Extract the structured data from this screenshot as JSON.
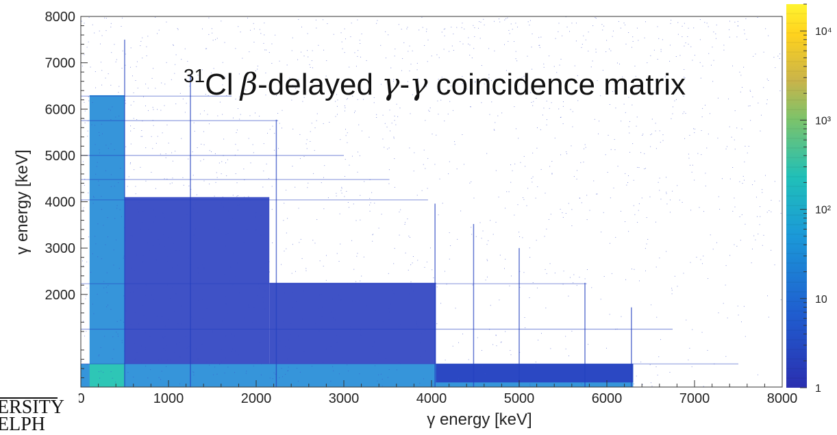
{
  "chart_data": {
    "type": "heatmap",
    "title": {
      "mass_number": "31",
      "element": "Cl",
      "beta": "β",
      "mid": "-delayed ",
      "gamma1": "γ",
      "dash": "-",
      "gamma2": "γ",
      "rest": " coincidence matrix"
    },
    "xlabel": "γ energy [keV]",
    "ylabel": "γ energy [keV]",
    "xlim": [
      0,
      8000
    ],
    "ylim": [
      0,
      8000
    ],
    "x_ticks": [
      "0",
      "1000",
      "2000",
      "3000",
      "4000",
      "5000",
      "6000",
      "7000",
      "8000"
    ],
    "y_ticks": [
      "2000",
      "3000",
      "4000",
      "5000",
      "6000",
      "7000",
      "8000"
    ],
    "colorbar": {
      "scale": "log",
      "range": [
        1,
        20000
      ],
      "tick_labels": [
        "1",
        "10",
        "10²",
        "10³",
        "10⁴"
      ]
    },
    "colors": {
      "low": "#2a3fc0",
      "mid": "#2b8fd8",
      "high": "#2fd0b0",
      "peak": "#ffe600"
    },
    "gamma_lines_keV": [
      500,
      1250,
      2230,
      4040,
      4480,
      5000,
      5750,
      6280
    ],
    "dense_regions_keV": [
      {
        "x": [
          100,
          500
        ],
        "y": [
          0,
          6300
        ],
        "level": "high"
      },
      {
        "x": [
          0,
          6300
        ],
        "y": [
          0,
          500
        ],
        "level": "high"
      },
      {
        "x": [
          500,
          2150
        ],
        "y": [
          500,
          4100
        ],
        "level": "mid"
      },
      {
        "x": [
          2150,
          4050
        ],
        "y": [
          500,
          2250
        ],
        "level": "mid"
      },
      {
        "x": [
          4050,
          6300
        ],
        "y": [
          100,
          500
        ],
        "level": "mid"
      }
    ]
  },
  "logo": {
    "line1": "ERSITY",
    "line2": "ELPH"
  }
}
